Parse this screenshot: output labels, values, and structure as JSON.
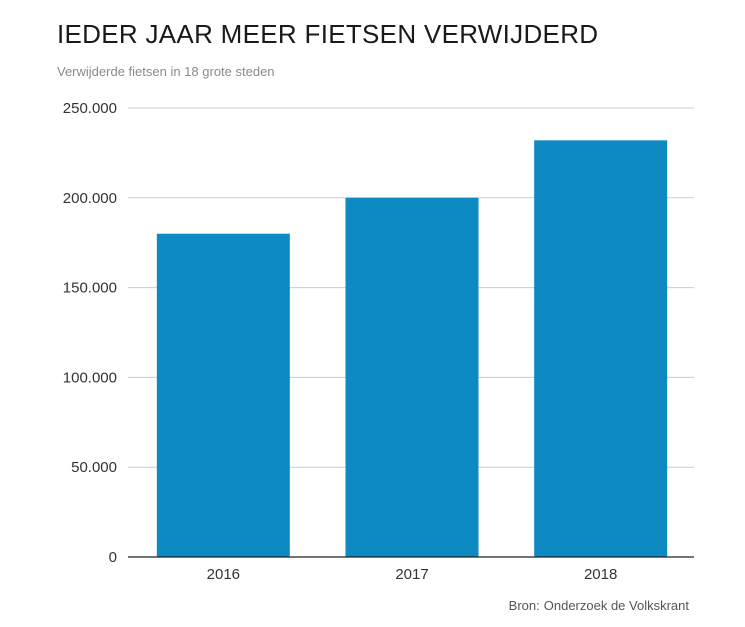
{
  "title": "IEDER JAAR MEER FIETSEN VERWIJDERD",
  "subtitle": "Verwijderde fietsen in 18 grote steden",
  "source": {
    "label": "Bron:",
    "text": "Onderzoek de Volkskrant"
  },
  "colors": {
    "bar": "#0e8ac2",
    "grid": "#cccccc",
    "axis": "#222222"
  },
  "chart_data": {
    "type": "bar",
    "categories": [
      "2016",
      "2017",
      "2018"
    ],
    "values": [
      180000,
      200000,
      232000
    ],
    "title": "IEDER JAAR MEER FIETSEN VERWIJDERD",
    "subtitle": "Verwijderde fietsen in 18 grote steden",
    "xlabel": "",
    "ylabel": "",
    "ylim": [
      0,
      250000
    ],
    "yticks": [
      0,
      50000,
      100000,
      150000,
      200000,
      250000
    ],
    "ytick_labels": [
      "0",
      "50.000",
      "100.000",
      "150.000",
      "200.000",
      "250.000"
    ],
    "grid": true,
    "legend": "none"
  }
}
